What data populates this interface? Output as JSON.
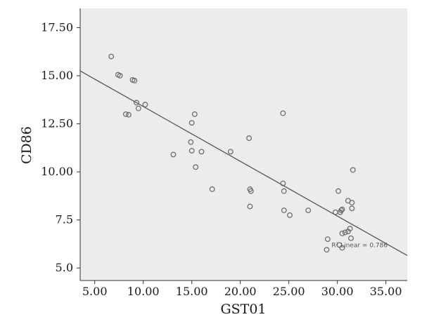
{
  "chart_data": {
    "type": "scatter",
    "xlabel": "GST01",
    "ylabel": "CD86",
    "xlim": [
      3.5,
      37.2
    ],
    "ylim": [
      4.35,
      18.5
    ],
    "x_ticks": [
      "5.00",
      "10.00",
      "15.00",
      "20.00",
      "25.00",
      "30.00",
      "35.00"
    ],
    "y_ticks": [
      "5.0",
      "7.5",
      "10.00",
      "12.50",
      "15.00",
      "17.50"
    ],
    "x_tick_values": [
      5,
      10,
      15,
      20,
      25,
      30,
      35
    ],
    "y_tick_values": [
      5,
      7.5,
      10,
      12.5,
      15,
      17.5
    ],
    "grid": false,
    "colors": {
      "plot_bg": "#ececec",
      "marker": "#6e6e6e",
      "line": "#555555",
      "axes": "#333333"
    },
    "series": [
      {
        "points": [
          [
            6.7,
            16.0
          ],
          [
            7.4,
            15.05
          ],
          [
            7.6,
            15.0
          ],
          [
            8.9,
            14.78
          ],
          [
            9.1,
            14.75
          ],
          [
            9.3,
            13.6
          ],
          [
            9.5,
            13.3
          ],
          [
            8.2,
            13.0
          ],
          [
            8.5,
            12.97
          ],
          [
            10.2,
            13.5
          ],
          [
            15.3,
            13.0
          ],
          [
            15.0,
            12.55
          ],
          [
            14.9,
            11.55
          ],
          [
            15.0,
            11.1
          ],
          [
            16.0,
            11.05
          ],
          [
            13.1,
            10.9
          ],
          [
            15.4,
            10.25
          ],
          [
            17.1,
            9.1
          ],
          [
            19.0,
            11.05
          ],
          [
            20.9,
            11.75
          ],
          [
            21.0,
            9.1
          ],
          [
            21.1,
            9.0
          ],
          [
            21.0,
            8.2
          ],
          [
            24.4,
            13.05
          ],
          [
            24.4,
            9.4
          ],
          [
            24.5,
            9.0
          ],
          [
            24.5,
            8.0
          ],
          [
            25.1,
            7.75
          ],
          [
            27.0,
            8.0
          ],
          [
            29.8,
            7.9
          ],
          [
            30.1,
            9.0
          ],
          [
            30.3,
            7.9
          ],
          [
            30.4,
            8.0
          ],
          [
            30.5,
            8.05
          ],
          [
            31.1,
            8.5
          ],
          [
            31.5,
            8.4
          ],
          [
            31.5,
            8.1
          ],
          [
            31.6,
            10.1
          ],
          [
            30.5,
            6.8
          ],
          [
            30.8,
            6.85
          ],
          [
            31.1,
            6.9
          ],
          [
            31.3,
            7.05
          ],
          [
            31.4,
            6.55
          ],
          [
            29.0,
            6.5
          ],
          [
            30.2,
            6.2
          ],
          [
            30.5,
            6.05
          ],
          [
            28.9,
            5.95
          ]
        ]
      }
    ],
    "fit_line": {
      "type": "linear",
      "x0": 3.5,
      "y0": 15.25,
      "x1": 37.2,
      "y1": 5.65
    },
    "annotations": [
      {
        "text": "R² Linear = 0.786",
        "x": 29.4,
        "y": 6.2
      }
    ]
  }
}
